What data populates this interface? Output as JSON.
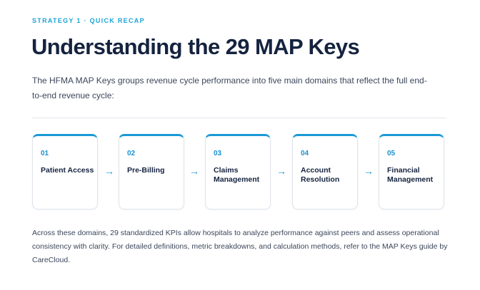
{
  "eyebrow": "STRATEGY 1 · QUICK RECAP",
  "title": "Understanding the 29 MAP Keys",
  "intro": "The HFMA MAP Keys groups revenue cycle performance into five main domains that reflect the full end-to-end revenue cycle:",
  "steps": [
    {
      "number": "01",
      "label": "Patient Access"
    },
    {
      "number": "02",
      "label": "Pre-Billing"
    },
    {
      "number": "03",
      "label": "Claims Management"
    },
    {
      "number": "04",
      "label": "Account Resolution"
    },
    {
      "number": "05",
      "label": "Financial Management"
    }
  ],
  "arrow_icon": "arrow-right-icon",
  "accent_color": "#1a9ad6",
  "outro": "Across these domains, 29 standardized KPIs allow hospitals to analyze performance against peers and assess operational consistency with clarity. For detailed definitions, metric breakdowns, and calculation methods, refer to the MAP Keys guide by CareCloud."
}
